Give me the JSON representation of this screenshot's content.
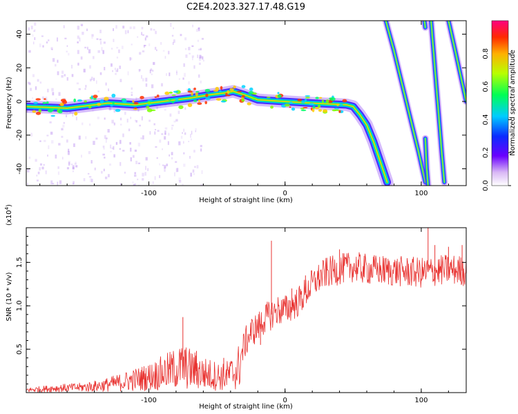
{
  "chart_data": [
    {
      "type": "heatmap",
      "title": "C2E4.2023.327.17.48.G19",
      "xlabel": "Height of straight line (km)",
      "ylabel": "Frequency (Hz)",
      "xlim": [
        -190,
        133
      ],
      "ylim": [
        -50,
        48
      ],
      "x_ticks": [
        -100,
        0,
        100
      ],
      "x_tick_labels": [
        "-100",
        "0",
        "100"
      ],
      "y_ticks": [
        -40,
        -20,
        0,
        20,
        40
      ],
      "y_tick_labels": [
        "-40",
        "-20",
        "0",
        "20",
        "40"
      ],
      "colorbar": {
        "label": "Normalized spectral amplitude",
        "range": [
          0,
          1
        ],
        "ticks": [
          0.0,
          0.2,
          0.4,
          0.6,
          0.8
        ],
        "tick_labels": [
          "0.0",
          "0.2",
          "0.4",
          "0.6",
          "0.8"
        ]
      },
      "grid": false,
      "traces": [
        {
          "name": "main-trace",
          "points": [
            [
              -190,
              -3
            ],
            [
              -160,
              -4
            ],
            [
              -130,
              -1
            ],
            [
              -110,
              -2
            ],
            [
              -90,
              0
            ],
            [
              -70,
              2
            ],
            [
              -55,
              4
            ],
            [
              -45,
              5
            ],
            [
              -38,
              6
            ],
            [
              -30,
              4
            ],
            [
              -20,
              1
            ],
            [
              0,
              0
            ],
            [
              20,
              -1
            ],
            [
              45,
              -2
            ],
            [
              50,
              -3
            ],
            [
              55,
              -8
            ],
            [
              60,
              -14
            ],
            [
              65,
              -24
            ],
            [
              70,
              -36
            ],
            [
              75,
              -48
            ]
          ]
        },
        {
          "name": "steep-trace-1",
          "points": [
            [
              74,
              48
            ],
            [
              80,
              30
            ],
            [
              86,
              10
            ],
            [
              92,
              -10
            ],
            [
              98,
              -30
            ],
            [
              103,
              -48
            ]
          ]
        },
        {
          "name": "steep-trace-2",
          "points": [
            [
              107,
              50
            ],
            [
              109,
              30
            ],
            [
              111,
              10
            ],
            [
              113,
              -10
            ],
            [
              115,
              -30
            ],
            [
              117,
              -48
            ]
          ]
        },
        {
          "name": "steep-trace-3",
          "points": [
            [
              120,
              48
            ],
            [
              125,
              30
            ],
            [
              129,
              15
            ],
            [
              133,
              0
            ]
          ]
        },
        {
          "name": "short-trace-1",
          "points": [
            [
              102,
              50
            ],
            [
              103,
              44
            ]
          ]
        },
        {
          "name": "short-trace-2",
          "points": [
            [
              103,
              -22
            ],
            [
              104,
              -40
            ],
            [
              105,
              -50
            ]
          ]
        }
      ]
    },
    {
      "type": "line",
      "title": "",
      "xlabel": "Height of straight line (km)",
      "ylabel": "SNR (10 * v/v)",
      "y_multiplier_label": "(x10",
      "y_multiplier_exp": "4",
      "y_multiplier_close": ")",
      "xlim": [
        -190,
        133
      ],
      "ylim": [
        0,
        1.9
      ],
      "x_ticks": [
        -100,
        0,
        100
      ],
      "x_tick_labels": [
        "-100",
        "0",
        "100"
      ],
      "y_ticks": [
        0.5,
        1.0,
        1.5
      ],
      "y_tick_labels": [
        "0.5",
        "1.0",
        "1.5"
      ],
      "grid": false,
      "line_color": "#e8312f",
      "x": [
        -190,
        -170,
        -150,
        -135,
        -120,
        -100,
        -85,
        -75,
        -60,
        -45,
        -35,
        -30,
        -25,
        -20,
        -15,
        -10,
        -5,
        0,
        10,
        20,
        25,
        30,
        40,
        50,
        60,
        80,
        100,
        110,
        120,
        133
      ],
      "y": [
        0.03,
        0.05,
        0.06,
        0.08,
        0.12,
        0.18,
        0.25,
        0.3,
        0.22,
        0.18,
        0.25,
        0.55,
        0.7,
        0.75,
        0.85,
        0.9,
        0.95,
        0.95,
        1.05,
        1.25,
        1.32,
        1.38,
        1.42,
        1.45,
        1.42,
        1.4,
        1.38,
        1.4,
        1.42,
        1.4
      ],
      "spikes": [
        [
          -75,
          0.87
        ],
        [
          -65,
          0.48
        ],
        [
          -45,
          0.4
        ],
        [
          -18,
          0.55
        ],
        [
          -10,
          1.75
        ],
        [
          5,
          1.2
        ],
        [
          15,
          1.35
        ],
        [
          40,
          1.65
        ],
        [
          105,
          1.9
        ],
        [
          110,
          1.7
        ],
        [
          120,
          1.68
        ],
        [
          130,
          1.7
        ]
      ]
    }
  ]
}
